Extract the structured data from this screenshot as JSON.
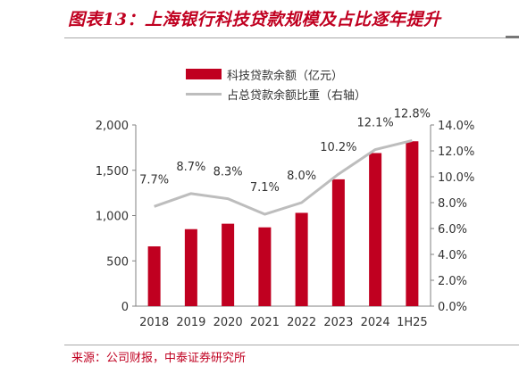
{
  "title": "图表13：上海银行科技贷款规模及占比逐年提升",
  "source": "来源：公司财报，中泰证券研究所",
  "colors": {
    "bar": "#c00020",
    "line": "#bdbdbd",
    "title": "#c00020"
  },
  "chart_data": {
    "type": "bar+line",
    "categories": [
      "2018",
      "2019",
      "2020",
      "2021",
      "2022",
      "2023",
      "2024",
      "1H25"
    ],
    "series": [
      {
        "name": "科技贷款余额（亿元）",
        "type": "bar",
        "axis": "left",
        "values": [
          660,
          850,
          910,
          870,
          1030,
          1400,
          1690,
          1820
        ]
      },
      {
        "name": "占总贷款余额比重（右轴）",
        "type": "line",
        "axis": "right",
        "values": [
          7.7,
          8.7,
          8.3,
          7.1,
          8.0,
          10.2,
          12.1,
          12.8
        ],
        "labels": [
          "7.7%",
          "8.7%",
          "8.3%",
          "7.1%",
          "8.0%",
          "10.2%",
          "12.1%",
          "12.8%"
        ]
      }
    ],
    "y_left": {
      "lim": [
        0,
        2000
      ],
      "ticks": [
        0,
        500,
        1000,
        1500,
        2000
      ],
      "tick_labels": [
        "0",
        "500",
        "1,000",
        "1,500",
        "2,000"
      ]
    },
    "y_right": {
      "lim": [
        0,
        14
      ],
      "ticks": [
        0,
        2,
        4,
        6,
        8,
        10,
        12,
        14
      ],
      "tick_labels": [
        "0.0%",
        "2.0%",
        "4.0%",
        "6.0%",
        "8.0%",
        "10.0%",
        "12.0%",
        "14.0%"
      ]
    },
    "legend_position": "top-center",
    "grid": false
  }
}
